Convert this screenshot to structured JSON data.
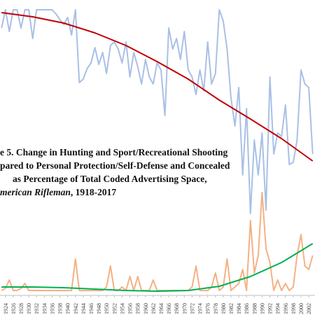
{
  "chart_data": {
    "type": "line",
    "title_lines": [
      "e 5. Change in Hunting and Sport/Recreational Shooting",
      "pared to Personal Protection/Self-Defense and Concealed",
      "as Percentage of Total Coded Advertising Space,"
    ],
    "title_italic": "merican Rifleman",
    "title_end": ", 1918-2017",
    "x": [
      1923,
      1924,
      1925,
      1926,
      1927,
      1928,
      1929,
      1930,
      1931,
      1932,
      1933,
      1934,
      1935,
      1936,
      1937,
      1938,
      1939,
      1940,
      1941,
      1942,
      1943,
      1944,
      1945,
      1946,
      1947,
      1948,
      1949,
      1950,
      1951,
      1952,
      1953,
      1954,
      1955,
      1956,
      1957,
      1958,
      1959,
      1960,
      1961,
      1962,
      1963,
      1964,
      1965,
      1966,
      1967,
      1968,
      1969,
      1970,
      1971,
      1972,
      1973,
      1974,
      1975,
      1976,
      1977,
      1978,
      1979,
      1980,
      1981,
      1982,
      1983,
      1984,
      1985,
      1986,
      1987,
      1988,
      1989,
      1990,
      1991,
      1992,
      1993,
      1994,
      1995,
      1996,
      1997,
      1998,
      1999,
      2000,
      2001,
      2002,
      2003
    ],
    "series": [
      {
        "color": "#a9c0e6",
        "width": 2,
        "values": [
          384,
          410,
          379,
          410,
          410,
          384,
          410,
          410,
          369,
          410,
          410,
          410,
          410,
          410,
          404,
          396,
          389,
          399,
          374,
          410,
          306,
          311,
          326,
          334,
          356,
          332,
          349,
          319,
          359,
          364,
          354,
          334,
          364,
          314,
          349,
          329,
          304,
          339,
          314,
          304,
          334,
          324,
          259,
          384,
          354,
          369,
          339,
          379,
          324,
          314,
          289,
          324,
          294,
          364,
          304,
          319,
          410,
          394,
          354,
          284,
          244,
          299,
          174,
          269,
          119,
          224,
          174,
          234,
          124,
          314,
          204,
          234,
          229,
          274,
          189,
          192,
          224,
          324,
          304,
          299,
          204
        ]
      },
      {
        "color": "#f4b183",
        "width": 2,
        "values": [
          9,
          12,
          24,
          9,
          9,
          12,
          19,
          9,
          9,
          9,
          9,
          9,
          9,
          9,
          9,
          9,
          9,
          9,
          9,
          54,
          9,
          9,
          9,
          9,
          9,
          9,
          9,
          14,
          44,
          9,
          9,
          14,
          9,
          29,
          9,
          29,
          9,
          9,
          9,
          24,
          9,
          9,
          9,
          9,
          9,
          9,
          9,
          9,
          9,
          14,
          44,
          9,
          9,
          9,
          14,
          34,
          9,
          14,
          54,
          9,
          14,
          19,
          39,
          9,
          109,
          34,
          59,
          149,
          69,
          49,
          9,
          24,
          9,
          19,
          9,
          14,
          59,
          89,
          44,
          39,
          59
        ]
      },
      {
        "color": "#c00000",
        "width": 2,
        "x": [
          1923,
          1931,
          1939,
          1947,
          1955,
          1963,
          1971,
          1979,
          1987,
          1995,
          2003
        ],
        "values": [
          406,
          400,
          391,
          377,
          359,
          336,
          311,
          281,
          254,
          226,
          194
        ]
      },
      {
        "color": "#00b050",
        "width": 2,
        "x": [
          1923,
          1931,
          1939,
          1947,
          1955,
          1963,
          1971,
          1979,
          1987,
          1995,
          2003
        ],
        "values": [
          14,
          14,
          13,
          11,
          9,
          8,
          9,
          15,
          29,
          49,
          76
        ]
      }
    ],
    "xlim": [
      1922.6,
      2003.6
    ],
    "ylim": [
      0,
      410
    ],
    "xticks": [
      1924,
      1926,
      1928,
      1930,
      1932,
      1934,
      1936,
      1938,
      1940,
      1942,
      1944,
      1946,
      1948,
      1950,
      1952,
      1954,
      1956,
      1958,
      1960,
      1962,
      1964,
      1966,
      1968,
      1970,
      1972,
      1974,
      1976,
      1978,
      1980,
      1982,
      1984,
      1986,
      1988,
      1990,
      1992,
      1994,
      1996,
      1998,
      2000,
      2002
    ]
  }
}
